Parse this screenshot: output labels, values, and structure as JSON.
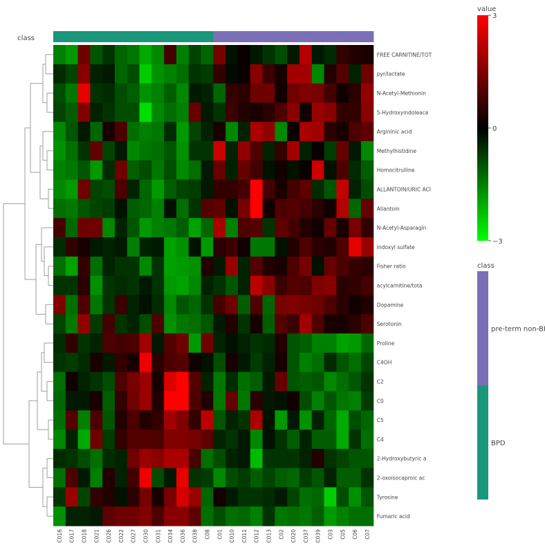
{
  "chart_data": {
    "type": "heatmap",
    "columns": [
      "C016",
      "C017",
      "C018",
      "C021",
      "C026",
      "C022",
      "C027",
      "C030",
      "C031",
      "C034",
      "C036",
      "C038",
      "C08",
      "C01",
      "C010",
      "C011",
      "C012",
      "C013",
      "C02",
      "C020",
      "C037",
      "C039",
      "C03",
      "C05",
      "C06",
      "C07"
    ],
    "rows": [
      "FREE CARNITINE/TOT",
      "pyr/lactate",
      "N-Acetyl-Methionin",
      "5-Hydroxyindoleace",
      "Argininic acid",
      "Methylhistidine",
      "Homocitrulline",
      "ALLANTOIN/URIC ACI",
      "Allantoin",
      "N-Acetyl-Asparagin",
      "Indoxyl sulfate",
      "Fisher ratio",
      "acylcarnitine/tota",
      "Dopamine",
      "Serotonin",
      "Proline",
      "C4OH",
      "C2",
      "C0",
      "C5",
      "C4",
      "2-Hydroxybutyric a",
      "2-oxoisocaproic ac",
      "Tyrosine",
      "Fumaric acid"
    ],
    "values": [
      [
        -1.5,
        -1.8,
        1.3,
        -1.0,
        -0.6,
        -1.2,
        -1.4,
        -2.0,
        -1.6,
        0.8,
        -1.5,
        -0.8,
        -1.2,
        1.4,
        -0.2,
        0.1,
        -0.3,
        -0.6,
        -0.9,
        -0.3,
        2.1,
        -0.3,
        -0.5,
        0.6,
        0.4,
        0.3
      ],
      [
        -0.5,
        -0.8,
        1.6,
        -0.4,
        -0.3,
        -1.2,
        -0.9,
        -2.4,
        -1.7,
        -1.5,
        -1.3,
        -0.6,
        -0.7,
        0.6,
        -0.1,
        0.1,
        1.6,
        0.7,
        0.3,
        1.9,
        1.9,
        -1.6,
        0.4,
        1.0,
        -0.4,
        1.3
      ],
      [
        -0.9,
        -1.4,
        2.7,
        -0.6,
        -0.5,
        -0.9,
        -1.1,
        -1.7,
        -1.5,
        -1.1,
        -1.6,
        -0.3,
        -0.4,
        -1.2,
        0.6,
        0.5,
        1.3,
        1.3,
        0.2,
        1.3,
        1.5,
        1.4,
        0.8,
        0.2,
        0.5,
        1.7
      ],
      [
        -0.8,
        -1.1,
        1.5,
        -0.4,
        -0.6,
        -0.9,
        -0.9,
        -2.6,
        -1.6,
        -1.3,
        -1.5,
        1.2,
        -0.3,
        -0.6,
        0.7,
        0.4,
        0.3,
        0.5,
        0.9,
        1.6,
        0.2,
        1.8,
        1.6,
        0.6,
        0.6,
        1.6
      ],
      [
        -1.6,
        -1.0,
        -0.3,
        -1.2,
        0.3,
        0.9,
        -1.3,
        -1.5,
        -1.4,
        -0.5,
        -1.8,
        -0.8,
        -0.4,
        0.3,
        -1.6,
        -0.4,
        2.0,
        1.7,
        -1.6,
        0.1,
        2.0,
        1.9,
        0.5,
        0.3,
        0.9,
        1.1
      ],
      [
        -1.7,
        -1.3,
        -0.6,
        1.2,
        -0.8,
        -0.3,
        -1.6,
        -1.4,
        -1.3,
        -1.0,
        -1.7,
        -0.6,
        -0.6,
        2.4,
        -0.4,
        1.7,
        0.9,
        -0.4,
        0.6,
        1.9,
        -0.4,
        0.1,
        -0.7,
        1.2,
        -0.3,
        -1.6
      ],
      [
        -1.5,
        -1.4,
        -1.0,
        -1.8,
        -0.5,
        1.3,
        -1.1,
        -0.9,
        -1.4,
        -0.9,
        -1.6,
        -1.3,
        -0.3,
        1.2,
        -0.4,
        1.2,
        0.8,
        -0.2,
        0.2,
        -0.2,
        0.1,
        2.4,
        -0.2,
        0.9,
        -0.5,
        -1.1
      ],
      [
        -1.6,
        -1.8,
        1.3,
        -0.8,
        -0.9,
        0.9,
        -0.4,
        -1.2,
        -1.8,
        -1.1,
        -0.8,
        -0.7,
        -0.3,
        0.6,
        0.6,
        0.8,
        3.0,
        0.8,
        0.3,
        0.8,
        1.1,
        -0.5,
        -1.0,
        2.3,
        -0.4,
        -0.9
      ],
      [
        -1.3,
        -1.4,
        -1.0,
        -0.8,
        -0.7,
        -0.2,
        -1.1,
        -1.2,
        -1.5,
        -0.2,
        -1.3,
        -0.6,
        1.0,
        1.1,
        -0.2,
        1.4,
        3.0,
        0.2,
        0.9,
        1.0,
        0.8,
        0.5,
        0.2,
        2.1,
        -1.2,
        1.2
      ],
      [
        0.8,
        -1.2,
        1.3,
        1.3,
        -1.6,
        -0.4,
        -1.0,
        -1.8,
        -1.5,
        -1.4,
        -1.1,
        -1.9,
        -1.2,
        2.0,
        -1.5,
        0.9,
        1.0,
        -0.6,
        1.1,
        0.8,
        0.4,
        0.2,
        1.2,
        0.3,
        1.4,
        0.6
      ],
      [
        -0.5,
        0.6,
        0.3,
        -0.3,
        -0.4,
        -0.3,
        -1.5,
        -0.4,
        -0.3,
        -1.9,
        -1.7,
        -0.2,
        -1.8,
        0.5,
        0.7,
        0.2,
        -1.4,
        -1.4,
        -0.2,
        0.4,
        0.9,
        0.5,
        0.4,
        0.9,
        2.7,
        1.8
      ],
      [
        -1.3,
        -1.9,
        0.6,
        -1.3,
        -0.4,
        -0.6,
        -0.6,
        -1.6,
        -0.6,
        -1.9,
        -1.8,
        -1.7,
        0.4,
        -0.3,
        1.8,
        -0.4,
        1.0,
        0.4,
        0.3,
        0.9,
        1.4,
        -0.2,
        1.2,
        0.9,
        0.6,
        0.5
      ],
      [
        -0.6,
        -0.6,
        0.5,
        -1.7,
        -0.6,
        -0.5,
        -0.6,
        -0.3,
        -0.6,
        -1.8,
        -1.9,
        -1.6,
        -0.4,
        -0.6,
        -1.0,
        -0.4,
        2.2,
        1.6,
        0.7,
        1.0,
        0.9,
        1.5,
        1.6,
        0.5,
        0.6,
        0.8
      ],
      [
        1.5,
        -1.3,
        0.9,
        -1.4,
        -0.6,
        0.7,
        -0.4,
        -0.2,
        -0.5,
        -1.6,
        -1.0,
        -1.2,
        -0.6,
        0.8,
        1.3,
        -1.1,
        0.9,
        -1.2,
        1.4,
        1.5,
        1.4,
        1.3,
        0.9,
        0.5,
        0.2,
        0.4
      ],
      [
        -0.8,
        -1.4,
        1.7,
        -0.7,
        0.8,
        -0.6,
        -0.4,
        -0.9,
        0.9,
        -1.7,
        -1.4,
        -1.3,
        -1.0,
        -0.3,
        0.4,
        -0.6,
        0.3,
        -1.1,
        1.0,
        0.7,
        1.9,
        0.9,
        0.3,
        0.3,
        0.5,
        0.9
      ],
      [
        -0.5,
        0.6,
        -0.6,
        -0.4,
        0.9,
        0.8,
        0.9,
        1.9,
        -0.3,
        1.0,
        1.3,
        -1.8,
        1.3,
        -0.4,
        -0.2,
        -0.4,
        -0.6,
        -0.5,
        0.4,
        -1.0,
        -1.1,
        -1.5,
        -1.5,
        -1.9,
        -1.8,
        -1.2
      ],
      [
        -0.6,
        -0.7,
        -0.5,
        0.3,
        -0.3,
        0.6,
        0.3,
        2.8,
        0.5,
        0.9,
        1.0,
        0.2,
        -0.2,
        -0.9,
        0.3,
        -0.3,
        -0.7,
        -0.4,
        0.3,
        -1.0,
        -1.5,
        -1.3,
        -0.5,
        -1.0,
        -1.3,
        -0.8
      ],
      [
        -1.3,
        0.2,
        -0.4,
        -0.6,
        -0.9,
        0.9,
        1.4,
        1.8,
        0.3,
        2.6,
        3.0,
        1.0,
        -0.4,
        -1.4,
        -0.5,
        -1.3,
        -1.1,
        -0.3,
        1.2,
        -1.0,
        -1.1,
        -1.0,
        -1.6,
        -1.3,
        -1.0,
        -0.6
      ],
      [
        -1.2,
        -0.3,
        -0.3,
        0.3,
        -1.1,
        0.6,
        1.3,
        1.8,
        0.4,
        3.0,
        3.0,
        0.9,
        0.4,
        -1.4,
        1.2,
        -1.4,
        0.5,
        -0.3,
        -0.2,
        0.2,
        -0.9,
        -1.5,
        -1.0,
        -1.4,
        -1.5,
        -0.7
      ],
      [
        -1.3,
        1.0,
        -1.5,
        0.9,
        -1.0,
        0.4,
        0.9,
        0.4,
        0.6,
        1.9,
        1.5,
        0.6,
        2.2,
        -1.0,
        -0.4,
        -0.6,
        2.0,
        -0.2,
        -1.8,
        -0.3,
        -1.7,
        -0.4,
        -1.2,
        -2.0,
        -0.9,
        -1.2
      ],
      [
        -1.6,
        -0.4,
        -2.0,
        1.3,
        -0.7,
        0.6,
        1.0,
        1.0,
        0.9,
        1.5,
        1.5,
        1.4,
        1.1,
        -0.4,
        -0.6,
        -0.3,
        -1.6,
        -0.2,
        -0.6,
        -1.1,
        -0.4,
        -1.1,
        -1.1,
        -2.0,
        -0.6,
        -1.3
      ],
      [
        -0.5,
        -0.6,
        -0.9,
        -1.3,
        -0.5,
        -0.4,
        1.3,
        1.8,
        1.6,
        2.0,
        2.0,
        0.8,
        -1.3,
        -0.9,
        -0.4,
        -0.3,
        -2.2,
        -0.6,
        -0.6,
        -0.6,
        -0.4,
        0.4,
        -0.6,
        -0.8,
        -1.0,
        -1.0
      ],
      [
        -1.3,
        0.9,
        -0.3,
        -1.5,
        0.4,
        -0.4,
        0.8,
        2.8,
        -0.9,
        -0.3,
        2.7,
        -0.6,
        -0.7,
        -1.6,
        -0.9,
        -0.7,
        -1.1,
        -0.8,
        -1.1,
        -1.2,
        -0.7,
        -1.0,
        -0.4,
        -1.1,
        -1.1,
        -0.6
      ],
      [
        -0.6,
        1.8,
        -0.8,
        0.6,
        0.4,
        -0.2,
        0.5,
        1.4,
        0.3,
        1.4,
        2.5,
        1.8,
        -1.2,
        0.2,
        -0.3,
        -0.6,
        -0.6,
        -0.5,
        -0.3,
        -0.8,
        -1.3,
        -1.2,
        -2.4,
        -0.9,
        -1.7,
        -1.0
      ],
      [
        -1.7,
        -0.4,
        -0.4,
        -0.3,
        1.1,
        1.3,
        1.3,
        1.5,
        0.9,
        1.6,
        1.6,
        1.1,
        -1.3,
        -0.9,
        -1.3,
        -1.2,
        -1.5,
        -0.6,
        -1.4,
        -1.3,
        -1.4,
        -1.1,
        -1.8,
        -1.5,
        -1.3,
        -1.3
      ]
    ],
    "column_class": [
      "BPD",
      "BPD",
      "BPD",
      "BPD",
      "BPD",
      "BPD",
      "BPD",
      "BPD",
      "BPD",
      "BPD",
      "BPD",
      "BPD",
      "BPD",
      "pre-term non-BPD",
      "pre-term non-BPD",
      "pre-term non-BPD",
      "pre-term non-BPD",
      "pre-term non-BPD",
      "pre-term non-BPD",
      "pre-term non-BPD",
      "pre-term non-BPD",
      "pre-term non-BPD",
      "pre-term non-BPD",
      "pre-term non-BPD",
      "pre-term non-BPD",
      "pre-term non-BPD"
    ],
    "class_label": "class",
    "classes": [
      {
        "name": "pre-term non-BPD",
        "color": "#7a6fb7"
      },
      {
        "name": "BPD",
        "color": "#1a977b"
      }
    ],
    "colorbar": {
      "title": "value",
      "min": -3,
      "max": 3,
      "ticks": [
        "3",
        "0",
        "−3"
      ],
      "colors": {
        "low": "#00ff00",
        "mid": "#000000",
        "high": "#ff0000"
      }
    },
    "row_dendrogram": true,
    "legend_position": "right"
  }
}
